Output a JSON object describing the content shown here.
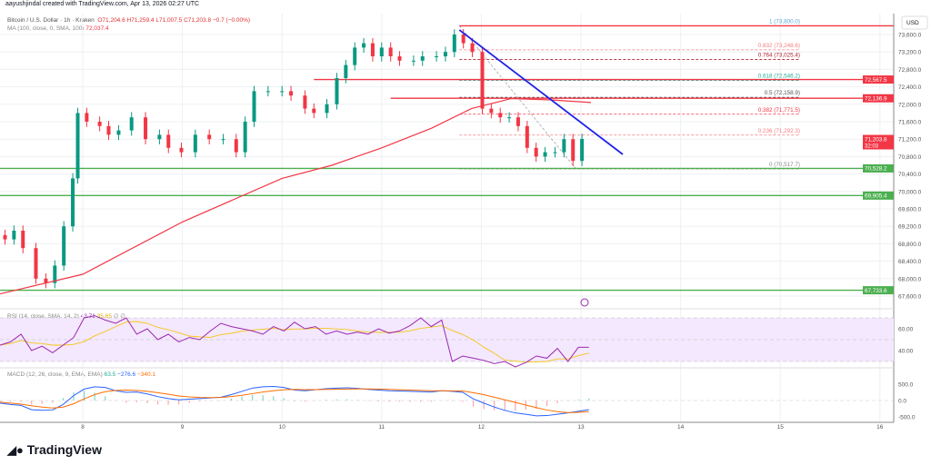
{
  "header": {
    "credit": "aayushjindal created with TradingView.com, Apr 13, 2026 02:27 UTC"
  },
  "legend": {
    "symbol": "Bitcoin / U.S. Dollar · 1h · Kraken",
    "open": "O71,204.6",
    "high": "H71,259.4",
    "low": "L71,007.5",
    "close": "C71,203.8",
    "change": "−0.7 (−0.00%)",
    "ma_label": "MA (100, close, 0, SMA, 100)",
    "ma_value": "72,037.4",
    "rsi_label": "RSI (14, close, SMA, 14, 2)",
    "rsi_value": "43.71",
    "rsi_sma": "35.65",
    "rsi_extra": "∅ ∅",
    "macd_label": "MACD (12, 26, close, 9, EMA, EMA)",
    "macd_hist": "63.5",
    "macd_line": "−276.6",
    "macd_signal": "−340.1"
  },
  "colors": {
    "up": "#089981",
    "down": "#f23645",
    "ma": "#f23645",
    "trendline": "#1e22e8",
    "support": "#4caf50",
    "resistance": "#f23645",
    "rsi": "#9c27b0",
    "rsi_sma": "#f5c518",
    "macd": "#2962ff",
    "signal": "#ff6d00"
  },
  "footer": {
    "logo_text": "TradingView"
  },
  "chart_data": [
    {
      "type": "candlestick",
      "currency": "USD",
      "ylim": [
        67600,
        73800
      ],
      "x_ticks": [
        "8",
        "9",
        "10",
        "11",
        "12",
        "13",
        "14",
        "15",
        "16"
      ],
      "y_ticks": [
        "73,600.0",
        "73,200.0",
        "72,800.0",
        "72,400.0",
        "72,000.0",
        "71,600.0",
        "71,200.0",
        "70,800.0",
        "70,400.0",
        "70,000.0",
        "69,600.0",
        "69,200.0",
        "68,800.0",
        "68,400.0",
        "68,000.0",
        "67,600.0"
      ],
      "x": [
        7.22,
        7.31,
        7.4,
        7.53,
        7.63,
        7.72,
        7.81,
        7.9,
        7.95,
        8.04,
        8.17,
        8.26,
        8.36,
        8.49,
        8.63,
        8.77,
        8.86,
        8.99,
        9.13,
        9.27,
        9.41,
        9.54,
        9.63,
        9.72,
        9.86,
        10.0,
        10.09,
        10.23,
        10.32,
        10.45,
        10.55,
        10.64,
        10.73,
        10.82,
        10.91,
        11.0,
        11.09,
        11.18,
        11.32,
        11.41,
        11.55,
        11.64,
        11.73,
        11.82,
        11.91,
        12.01,
        12.1,
        12.19,
        12.28,
        12.37,
        12.46,
        12.55,
        12.64,
        12.74,
        12.83,
        12.92,
        13.01
      ],
      "close": [
        68900,
        69100,
        68700,
        68000,
        67900,
        68300,
        69200,
        70300,
        71800,
        71600,
        71500,
        71300,
        71400,
        71700,
        71200,
        71300,
        71000,
        70900,
        71300,
        71200,
        71200,
        70900,
        71600,
        72300,
        72300,
        72300,
        72200,
        71900,
        71800,
        72000,
        72600,
        72900,
        73300,
        73400,
        73100,
        73300,
        73100,
        73000,
        73000,
        73100,
        73100,
        73200,
        73600,
        73400,
        73200,
        71900,
        71800,
        71700,
        71700,
        71500,
        71000,
        70800,
        70900,
        70900,
        71200,
        70700,
        71204
      ],
      "ma100": {
        "x": [
          7.17,
          8.0,
          9.0,
          10.0,
          10.5,
          11.0,
          11.5,
          11.9,
          12.3,
          12.7,
          13.1
        ],
        "y": [
          67650,
          68100,
          69300,
          70300,
          70600,
          71000,
          71450,
          71900,
          72130,
          72100,
          72040
        ]
      },
      "price_labels": [
        {
          "text": "72,567.5",
          "value": 72567.5,
          "color": "#f23645"
        },
        {
          "text": "72,136.9",
          "value": 72136.9,
          "color": "#f23645"
        },
        {
          "text": "71,203.8",
          "sub": "32:03",
          "value": 71203.8,
          "color": "#f23645"
        },
        {
          "text": "70,528.2",
          "value": 70528.2,
          "color": "#4caf50"
        },
        {
          "text": "69,905.4",
          "value": 69905.4,
          "color": "#4caf50"
        },
        {
          "text": "67,733.6",
          "value": 67733.6,
          "color": "#4caf50"
        }
      ],
      "fib": [
        {
          "label": "1 (73,800.0)",
          "value": 73800,
          "color": "#5fa8d3"
        },
        {
          "label": "0.832 (73,248.6)",
          "value": 73248.6,
          "color": "#f77c80"
        },
        {
          "label": "0.764 (73,025.4)",
          "value": 73025.4,
          "color": "#b0202a"
        },
        {
          "label": "0.618 (72,546.2)",
          "value": 72546.2,
          "color": "#22ab94"
        },
        {
          "label": "0.5 (72,158.9)",
          "value": 72158.9,
          "color": "#555555"
        },
        {
          "label": "0.382 (71,771.5)",
          "value": 71771.5,
          "color": "#f23645"
        },
        {
          "label": "0.236 (71,292.3)",
          "value": 71292.3,
          "color": "#f77c80"
        },
        {
          "label": "0 (70,517.7)",
          "value": 70517.7,
          "color": "#888888"
        }
      ],
      "trendline": {
        "x": [
          11.78,
          13.42
        ],
        "y": [
          73704,
          70850
        ]
      },
      "horizontal_lines": [
        {
          "value": 72567.5,
          "from": 10.32,
          "color": "#f23645"
        },
        {
          "value": 72136.9,
          "from": 11.09,
          "color": "#f23645"
        },
        {
          "value": 73800,
          "from": 11.78,
          "color": "#f23645"
        },
        {
          "value": 70528.2,
          "from": 7.17,
          "color": "#4caf50"
        },
        {
          "value": 69905.4,
          "from": 7.17,
          "color": "#4caf50"
        },
        {
          "value": 67733.6,
          "from": 7.17,
          "color": "#4caf50"
        }
      ]
    },
    {
      "type": "line",
      "name": "RSI",
      "ylim": [
        25,
        75
      ],
      "y_ticks": [
        "60.00",
        "40.00"
      ],
      "values": [
        45,
        48,
        55,
        40,
        44,
        38,
        45,
        52,
        70,
        72,
        68,
        65,
        70,
        55,
        60,
        50,
        55,
        48,
        52,
        50,
        58,
        65,
        62,
        60,
        58,
        55,
        62,
        58,
        66,
        60,
        62,
        55,
        58,
        55,
        57,
        55,
        60,
        56,
        58,
        63,
        70,
        62,
        68,
        30,
        35,
        33,
        31,
        28,
        30,
        25,
        29,
        35,
        33,
        42,
        30,
        43,
        43
      ]
    },
    {
      "type": "macd",
      "ylim": [
        -550,
        650
      ],
      "y_ticks": [
        "500.0",
        "0.0",
        "-500.0"
      ],
      "macd": [
        -80,
        -120,
        -150,
        -280,
        -300,
        -290,
        -120,
        150,
        350,
        420,
        400,
        300,
        250,
        260,
        200,
        120,
        60,
        20,
        40,
        60,
        80,
        100,
        180,
        280,
        380,
        420,
        430,
        400,
        320,
        300,
        330,
        360,
        380,
        390,
        370,
        340,
        320,
        300,
        290,
        280,
        270,
        260,
        300,
        280,
        250,
        50,
        -80,
        -200,
        -300,
        -380,
        -420,
        -470,
        -460,
        -420,
        -380,
        -330,
        -277
      ],
      "signal": [
        -50,
        -80,
        -110,
        -160,
        -200,
        -230,
        -200,
        -100,
        50,
        180,
        270,
        310,
        320,
        310,
        280,
        240,
        190,
        140,
        110,
        95,
        90,
        95,
        120,
        160,
        210,
        260,
        300,
        330,
        340,
        335,
        335,
        340,
        345,
        350,
        355,
        355,
        350,
        340,
        330,
        320,
        310,
        300,
        300,
        295,
        290,
        240,
        180,
        100,
        20,
        -60,
        -140,
        -220,
        -290,
        -340,
        -370,
        -360,
        -340
      ]
    }
  ]
}
